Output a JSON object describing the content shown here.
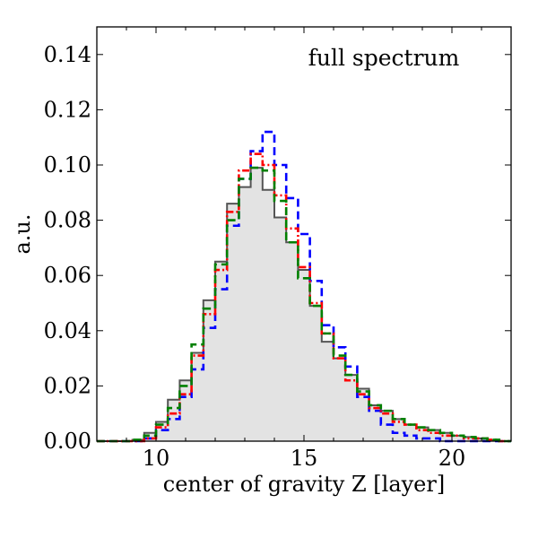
{
  "chart_data": {
    "type": "step-histogram",
    "xlabel": "center of gravity Z [layer]",
    "ylabel": "a.u.",
    "annotation": "full spectrum",
    "xlim": [
      8,
      22
    ],
    "ylim": [
      0,
      0.15
    ],
    "xticks": [
      10,
      15,
      20
    ],
    "yticks": [
      0.0,
      0.02,
      0.04,
      0.06,
      0.08,
      0.1,
      0.12,
      0.14
    ],
    "ytick_labels": [
      "0.00",
      "0.02",
      "0.04",
      "0.06",
      "0.08",
      "0.10",
      "0.12",
      "0.14"
    ],
    "bin_edges": [
      8.0,
      8.4,
      8.8,
      9.2,
      9.6,
      10.0,
      10.4,
      10.8,
      11.2,
      11.6,
      12.0,
      12.4,
      12.8,
      13.2,
      13.6,
      14.0,
      14.4,
      14.8,
      15.2,
      15.6,
      16.0,
      16.4,
      16.8,
      17.2,
      17.6,
      18.0,
      18.4,
      18.8,
      19.2,
      19.6,
      20.0,
      20.4,
      20.8,
      21.2,
      21.6,
      22.0
    ],
    "series": [
      {
        "style": "filled-gray",
        "color": "#555555",
        "fill": "#e3e3e3",
        "values": [
          0.0,
          0.0,
          0.0,
          0.0005,
          0.003,
          0.007,
          0.015,
          0.022,
          0.032,
          0.051,
          0.065,
          0.086,
          0.092,
          0.099,
          0.091,
          0.081,
          0.072,
          0.062,
          0.049,
          0.036,
          0.03,
          0.024,
          0.019,
          0.013,
          0.011,
          0.008,
          0.006,
          0.005,
          0.004,
          0.003,
          0.002,
          0.0015,
          0.001,
          0.0005,
          0.0
        ]
      },
      {
        "style": "dashed",
        "color": "#0000ff",
        "values": [
          0.0,
          0.0,
          0.0,
          0.0,
          0.001,
          0.004,
          0.008,
          0.016,
          0.026,
          0.041,
          0.055,
          0.078,
          0.095,
          0.105,
          0.112,
          0.1,
          0.088,
          0.075,
          0.058,
          0.042,
          0.034,
          0.027,
          0.016,
          0.011,
          0.006,
          0.003,
          0.002,
          0.001,
          0.001,
          0.0,
          0.0,
          0.0,
          0.0,
          0.0,
          0.0
        ]
      },
      {
        "style": "dash-dot",
        "color": "#ff0000",
        "values": [
          0.0,
          0.0,
          0.0,
          0.0,
          0.001,
          0.005,
          0.01,
          0.017,
          0.031,
          0.046,
          0.062,
          0.083,
          0.098,
          0.104,
          0.1,
          0.089,
          0.077,
          0.063,
          0.05,
          0.039,
          0.03,
          0.022,
          0.017,
          0.012,
          0.01,
          0.007,
          0.006,
          0.004,
          0.003,
          0.002,
          0.002,
          0.001,
          0.001,
          0.0005,
          0.0
        ]
      },
      {
        "style": "dashed",
        "color": "#008000",
        "values": [
          0.0,
          0.0,
          0.0,
          0.0005,
          0.002,
          0.006,
          0.012,
          0.02,
          0.035,
          0.048,
          0.064,
          0.08,
          0.095,
          0.099,
          0.098,
          0.087,
          0.072,
          0.059,
          0.049,
          0.039,
          0.031,
          0.024,
          0.018,
          0.013,
          0.011,
          0.008,
          0.006,
          0.005,
          0.004,
          0.003,
          0.002,
          0.0015,
          0.001,
          0.0005,
          0.0
        ]
      }
    ]
  }
}
